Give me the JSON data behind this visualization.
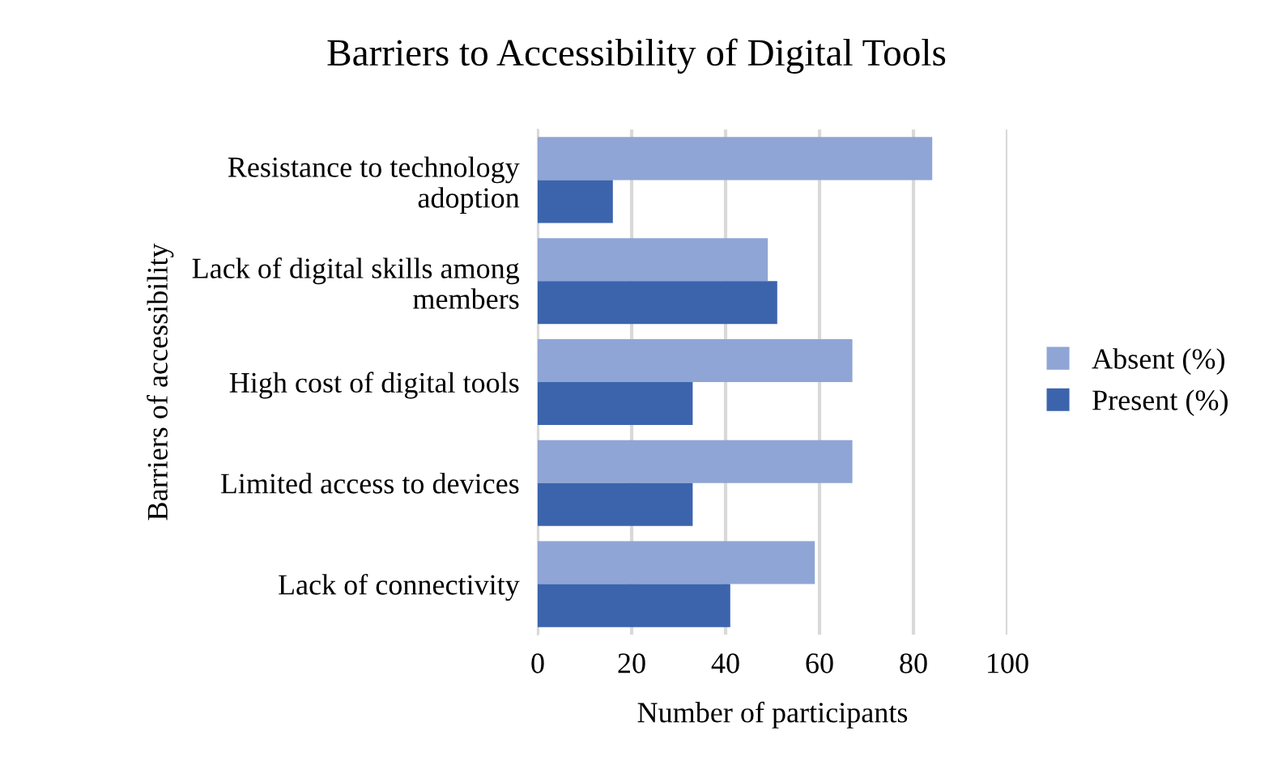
{
  "chart_data": {
    "type": "bar",
    "orientation": "horizontal",
    "title": "Barriers to Accessibility of Digital Tools",
    "xlabel": "Number of participants",
    "ylabel": "Barriers of accessibility",
    "categories": [
      "Resistance to technology adoption",
      "Lack of digital skills among members",
      "High cost of digital tools",
      "Limited access to devices",
      "Lack of connectivity"
    ],
    "series": [
      {
        "name": "Absent (%)",
        "color": "#8fa5d5",
        "values": [
          84,
          49,
          67,
          67,
          59
        ]
      },
      {
        "name": "Present (%)",
        "color": "#3c64ad",
        "values": [
          16,
          51,
          33,
          33,
          41
        ]
      }
    ],
    "xlim": [
      0,
      100
    ],
    "xticks": [
      0,
      20,
      40,
      60,
      80,
      100
    ],
    "grid": "x",
    "legend": "right"
  }
}
